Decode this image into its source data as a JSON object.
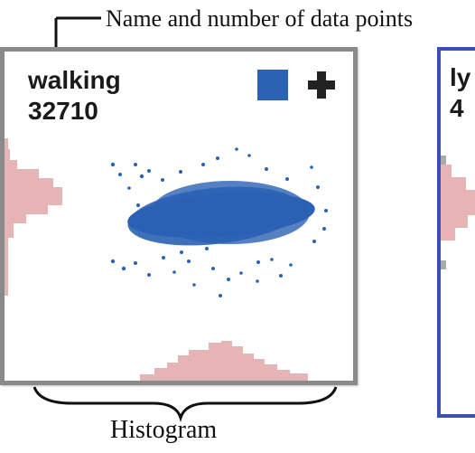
{
  "annotations": {
    "top": "Name and number of data points",
    "bottom": "Histogram"
  },
  "card": {
    "name": "walking",
    "count": "32710",
    "swatch_color": "#2a62b4",
    "add_icon": "plus-icon",
    "point_color": "#2a62b4",
    "hist_color": "#e6b4b4"
  },
  "card2": {
    "name": "ly",
    "count": "4",
    "border_color": "#3a4fb0"
  }
}
